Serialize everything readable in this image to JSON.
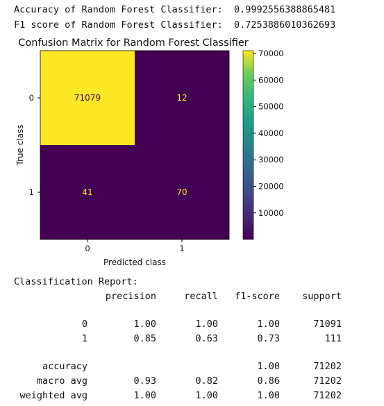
{
  "stdout": {
    "accuracy_line": "Accuracy of Random Forest Classifier:  0.9992556388865481",
    "f1_line": "F1 score of Random Forest Classifier:  0.7253886010362693"
  },
  "chart_data": {
    "type": "heatmap",
    "title": "Confusion Matrix for Random Forest Classifier",
    "xlabel": "Predicted class",
    "ylabel": "True class",
    "x_tick_labels": [
      "0",
      "1"
    ],
    "y_tick_labels": [
      "0",
      "1"
    ],
    "matrix": [
      [
        71079,
        12
      ],
      [
        41,
        70
      ]
    ],
    "colormap": "viridis",
    "colorbar": {
      "min": 12,
      "max": 71079,
      "ticks": [
        10000,
        20000,
        30000,
        40000,
        50000,
        60000,
        70000
      ],
      "tick_labels": [
        "10000",
        "20000",
        "30000",
        "40000",
        "50000",
        "60000",
        "70000"
      ]
    },
    "colors": {
      "low": "#440154",
      "high": "#fde725",
      "text_on_dark": "#fde725",
      "text_on_light": "#440154"
    }
  },
  "report": {
    "title": "Classification Report:",
    "headers": [
      "precision",
      "recall",
      "f1-score",
      "support"
    ],
    "rows": [
      {
        "label": "0",
        "cells": [
          "1.00",
          "1.00",
          "1.00",
          "71091"
        ]
      },
      {
        "label": "1",
        "cells": [
          "0.85",
          "0.63",
          "0.73",
          "111"
        ]
      },
      {
        "label": "accuracy",
        "cells": [
          "",
          "",
          "1.00",
          "71202"
        ]
      },
      {
        "label": "macro avg",
        "cells": [
          "0.93",
          "0.82",
          "0.86",
          "71202"
        ]
      },
      {
        "label": "weighted avg",
        "cells": [
          "1.00",
          "1.00",
          "1.00",
          "71202"
        ]
      }
    ]
  }
}
